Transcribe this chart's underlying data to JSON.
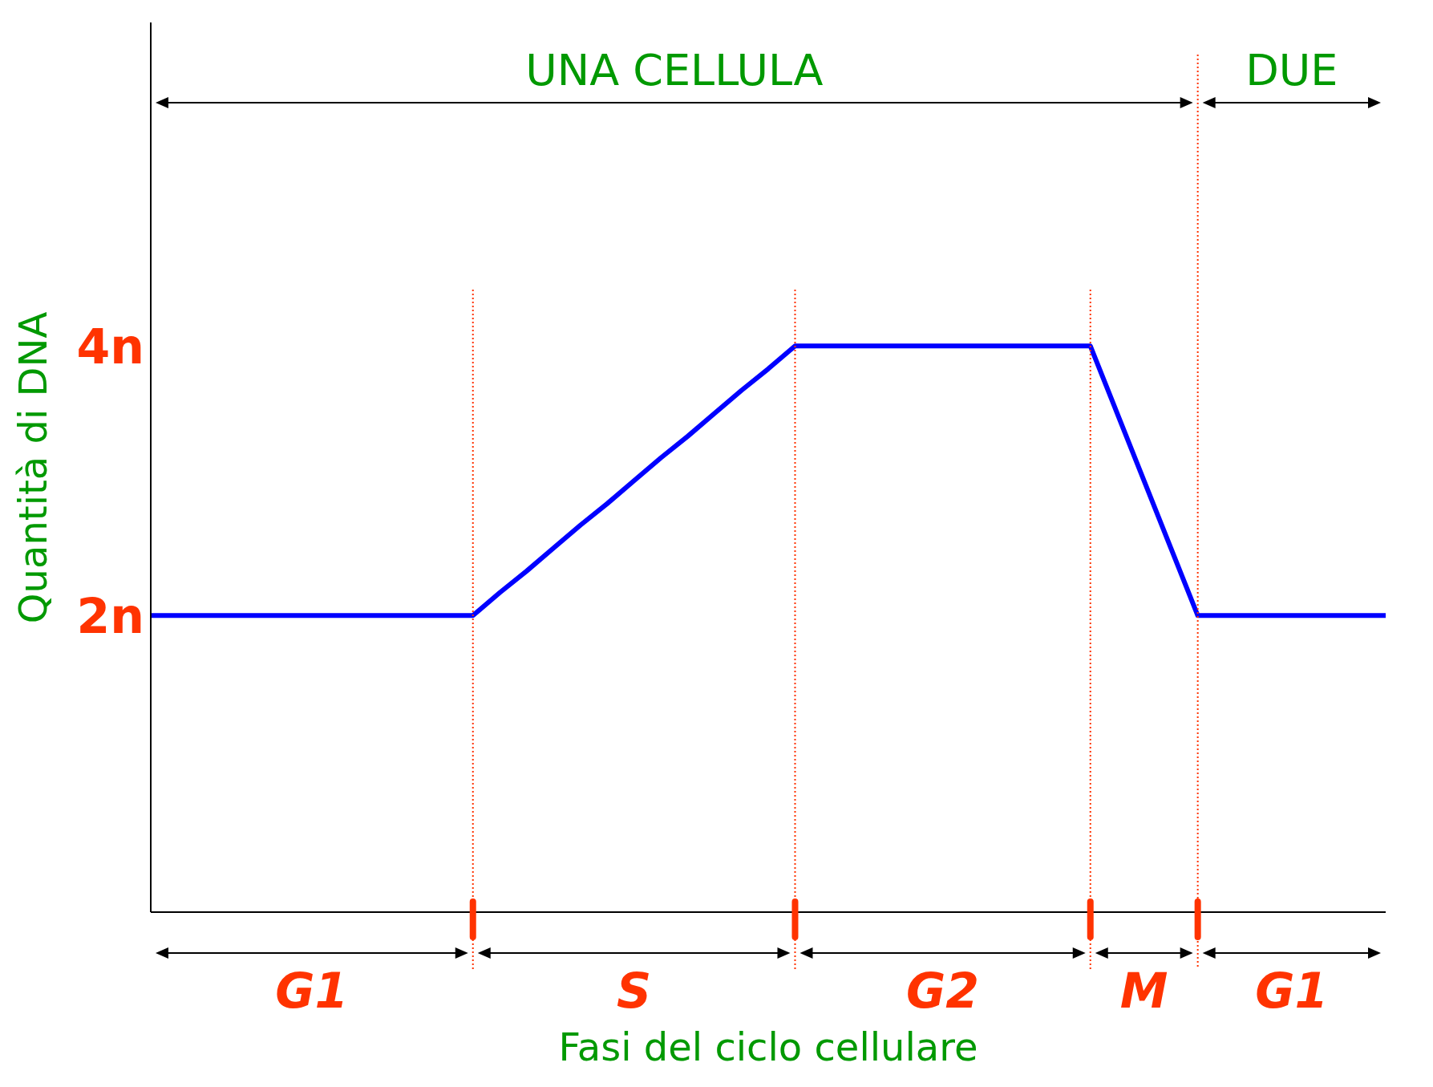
{
  "chart_data": {
    "type": "line",
    "xlabel": "Fasi del ciclo cellulare",
    "ylabel": "Quantità di DNA",
    "categories": [
      null,
      null,
      null,
      null,
      null,
      null,
      null,
      null,
      null,
      null,
      null,
      null,
      null,
      null,
      null,
      null,
      null,
      null,
      null,
      null,
      null,
      null,
      null,
      null,
      null,
      null,
      null,
      null,
      null,
      null,
      null,
      null,
      null,
      null,
      null,
      null,
      null,
      null,
      null,
      null,
      null,
      null,
      null,
      null,
      null,
      null,
      null
    ],
    "series": [
      {
        "color": "#0000ff",
        "values": [
          2,
          2,
          2,
          2,
          2,
          2,
          2,
          2,
          2,
          2,
          2,
          2,
          2,
          2.17,
          2.33,
          2.5,
          2.67,
          2.83,
          3,
          3.17,
          3.33,
          3.5,
          3.67,
          3.83,
          4,
          4,
          4,
          4,
          4,
          4,
          4,
          4,
          4,
          4,
          4,
          4,
          3.5,
          3,
          2.5,
          2,
          2,
          2,
          2,
          2,
          2,
          2,
          2
        ]
      }
    ],
    "ylim": [
      -0.2,
      6.4
    ],
    "yticks": [
      {
        "value": 2,
        "label": "2n"
      },
      {
        "value": 4,
        "label": "4n"
      }
    ],
    "tick_labels": "y",
    "grid": "x",
    "legend": false,
    "annotations": [
      "G1",
      "S",
      "G2",
      "M",
      "G1",
      "UNA CELLULA",
      "DUE"
    ]
  }
}
